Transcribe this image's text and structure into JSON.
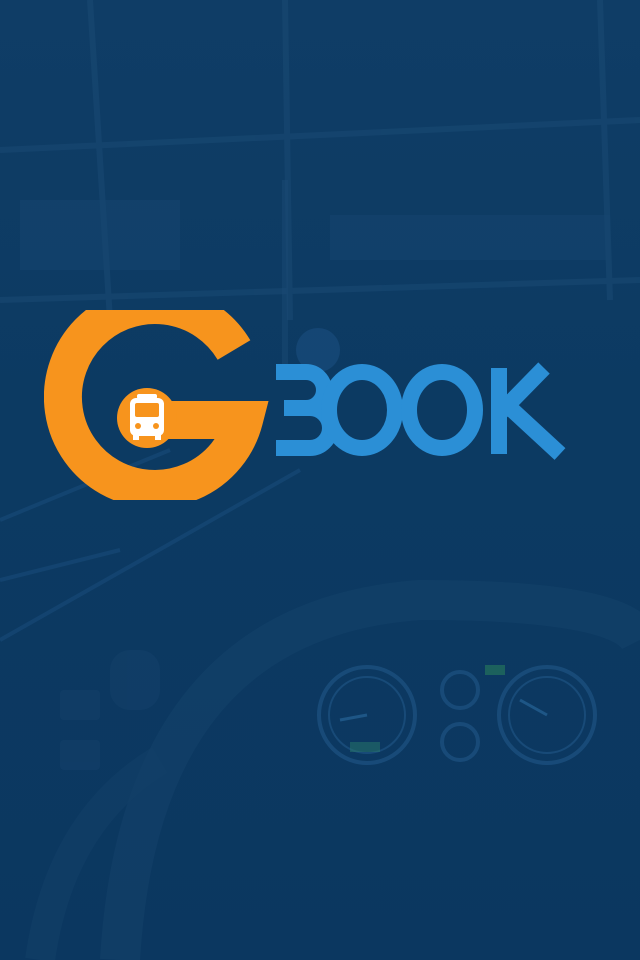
{
  "splash": {
    "logo": {
      "text": "GBOOK",
      "icon": "bus-icon",
      "colors": {
        "g_ring": "#f7941d",
        "book_text": "#2b8fd6",
        "icon_white": "#ffffff"
      }
    },
    "background": {
      "description_colors": {
        "overlay": "#0d3b63"
      }
    }
  }
}
